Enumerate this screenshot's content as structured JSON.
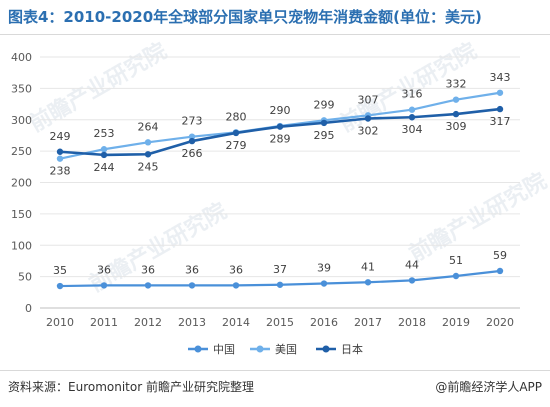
{
  "header": {
    "title": "图表4：2010-2020年全球部分国家单只宠物年消费金额(单位：美元)"
  },
  "footer": {
    "source": "资料来源：Euromonitor 前瞻产业研究院整理",
    "brand": "@前瞻经济学人APP"
  },
  "watermark": {
    "text": "前瞻产业研究院"
  },
  "colors": {
    "china": "#4a90d9",
    "usa": "#6fb0ea",
    "japan": "#1f5fa8"
  },
  "chart_data": {
    "type": "line",
    "categories": [
      "2010",
      "2011",
      "2012",
      "2013",
      "2014",
      "2015",
      "2016",
      "2017",
      "2018",
      "2019",
      "2020"
    ],
    "ylim": [
      0,
      400
    ],
    "yticks": [
      0,
      50,
      100,
      150,
      200,
      250,
      300,
      350,
      400
    ],
    "grid": true,
    "legend_position": "bottom",
    "series": [
      {
        "name": "中国",
        "values": [
          35,
          36,
          36,
          36,
          36,
          37,
          39,
          41,
          44,
          51,
          59
        ]
      },
      {
        "name": "美国",
        "values": [
          238,
          253,
          264,
          273,
          280,
          290,
          299,
          307,
          316,
          332,
          343
        ]
      },
      {
        "name": "日本",
        "values": [
          249,
          244,
          245,
          266,
          279,
          289,
          295,
          302,
          304,
          309,
          317
        ]
      }
    ]
  }
}
